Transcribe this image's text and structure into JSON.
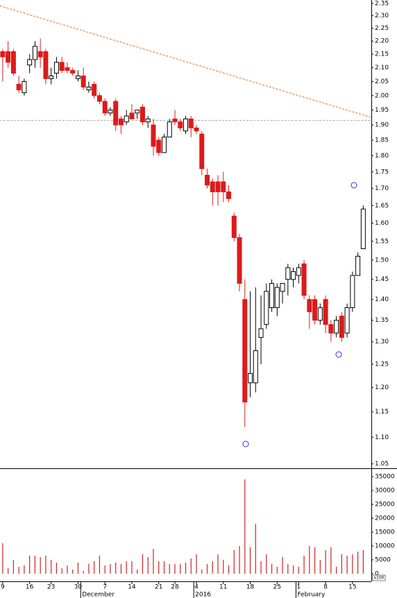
{
  "chart_data": [
    {
      "type": "candlestick",
      "x": [
        0,
        1,
        2,
        3,
        4,
        5,
        6,
        7,
        8,
        9,
        10,
        11,
        12,
        13,
        14,
        15,
        16,
        17,
        18,
        19,
        20,
        21,
        22,
        23,
        24,
        25,
        26,
        27,
        28,
        29,
        30,
        31,
        32,
        33,
        34,
        35,
        36,
        37,
        38,
        39,
        40,
        41,
        42,
        43,
        44,
        45,
        46,
        47,
        48,
        49,
        50,
        51,
        52,
        53,
        54,
        55,
        56,
        57,
        58,
        59,
        60,
        61,
        62,
        63,
        64,
        65,
        66,
        67
      ],
      "open": [
        2.16,
        2.16,
        2.16,
        2.04,
        2.01,
        2.11,
        2.13,
        2.16,
        2.16,
        2.06,
        2.08,
        2.12,
        2.1,
        2.09,
        2.06,
        2.07,
        2.02,
        2.04,
        2.0,
        1.98,
        1.94,
        1.98,
        1.92,
        1.91,
        1.94,
        1.94,
        1.96,
        1.91,
        1.9,
        1.85,
        1.81,
        1.86,
        1.92,
        1.91,
        1.88,
        1.92,
        1.89,
        1.87,
        1.74,
        1.72,
        1.72,
        1.72,
        1.69,
        1.62,
        1.56,
        1.4,
        1.21,
        1.21,
        1.31,
        1.34,
        1.38,
        1.38,
        1.42,
        1.45,
        1.45,
        1.46,
        1.49,
        1.4,
        1.4,
        1.35,
        1.4,
        1.34,
        1.32,
        1.36,
        1.32,
        1.38,
        1.46,
        1.53
      ],
      "high": [
        2.17,
        2.2,
        2.17,
        2.07,
        2.06,
        2.15,
        2.2,
        2.21,
        2.17,
        2.1,
        2.14,
        2.14,
        2.12,
        2.1,
        2.09,
        2.1,
        2.05,
        2.05,
        2.01,
        1.99,
        1.96,
        1.99,
        1.93,
        1.95,
        1.97,
        1.95,
        1.97,
        1.93,
        1.92,
        1.86,
        1.87,
        1.92,
        1.95,
        1.92,
        1.93,
        1.93,
        1.9,
        1.88,
        1.76,
        1.73,
        1.74,
        1.75,
        1.71,
        1.63,
        1.57,
        1.45,
        1.42,
        1.43,
        1.41,
        1.44,
        1.45,
        1.44,
        1.44,
        1.49,
        1.48,
        1.49,
        1.5,
        1.41,
        1.41,
        1.39,
        1.41,
        1.35,
        1.36,
        1.37,
        1.39,
        1.47,
        1.52,
        1.65
      ],
      "low": [
        2.05,
        2.1,
        2.07,
        2.01,
        2.0,
        2.08,
        2.1,
        2.1,
        2.04,
        2.04,
        2.06,
        2.08,
        2.08,
        2.07,
        2.05,
        2.02,
        2.01,
        1.99,
        1.97,
        1.93,
        1.93,
        1.88,
        1.87,
        1.9,
        1.92,
        1.92,
        1.9,
        1.89,
        1.8,
        1.8,
        1.81,
        1.86,
        1.9,
        1.88,
        1.87,
        1.86,
        1.87,
        1.74,
        1.7,
        1.65,
        1.65,
        1.66,
        1.66,
        1.55,
        1.42,
        1.12,
        1.18,
        1.19,
        1.25,
        1.33,
        1.37,
        1.36,
        1.39,
        1.41,
        1.43,
        1.44,
        1.4,
        1.33,
        1.34,
        1.34,
        1.32,
        1.3,
        1.31,
        1.3,
        1.31,
        1.37,
        1.46,
        1.53
      ],
      "close": [
        2.14,
        2.12,
        2.08,
        2.02,
        2.05,
        2.13,
        2.18,
        2.14,
        2.06,
        2.07,
        2.12,
        2.09,
        2.09,
        2.08,
        2.07,
        2.03,
        2.03,
        2.0,
        1.98,
        1.94,
        1.95,
        1.9,
        1.9,
        1.93,
        1.92,
        1.95,
        1.91,
        1.92,
        1.83,
        1.81,
        1.86,
        1.91,
        1.91,
        1.89,
        1.92,
        1.89,
        1.88,
        1.76,
        1.71,
        1.69,
        1.69,
        1.69,
        1.67,
        1.56,
        1.44,
        1.17,
        1.23,
        1.28,
        1.33,
        1.42,
        1.44,
        1.43,
        1.44,
        1.48,
        1.47,
        1.48,
        1.41,
        1.37,
        1.35,
        1.38,
        1.34,
        1.32,
        1.35,
        1.31,
        1.38,
        1.46,
        1.51,
        1.64
      ],
      "up_color": "#ffffff",
      "down_color": "#dd1a1a",
      "log_scale": true,
      "xlim": [
        -0.5,
        68.5
      ],
      "ylim": [
        1.042,
        2.364
      ],
      "yticks": [
        2.35,
        {
          "value": 2.3,
          "label": "2.30"
        },
        2.25,
        {
          "value": 2.2,
          "label": "2.20"
        },
        2.15,
        {
          "value": 2.1,
          "label": "2.10"
        },
        2.05,
        {
          "value": 2.0,
          "label": "2.00"
        },
        1.95,
        {
          "value": 1.9,
          "label": "1.90"
        },
        1.85,
        {
          "value": 1.8,
          "label": "1.80"
        },
        1.75,
        {
          "value": 1.7,
          "label": "1.70"
        },
        1.65,
        {
          "value": 1.6,
          "label": "1.60"
        },
        1.55,
        {
          "value": 1.5,
          "label": "1.50"
        },
        1.45,
        {
          "value": 1.4,
          "label": "1.40"
        },
        1.35,
        {
          "value": 1.3,
          "label": "1.30"
        },
        1.25,
        {
          "value": 1.2,
          "label": "1.20"
        },
        1.15,
        {
          "value": 1.1,
          "label": "1.10"
        },
        1.05
      ],
      "hline": 1.915,
      "trendline": {
        "x": [
          -0.5,
          68.5
        ],
        "y": [
          2.34,
          1.925
        ]
      }
    },
    {
      "type": "bar",
      "x": [
        0,
        1,
        2,
        3,
        4,
        5,
        6,
        7,
        8,
        9,
        10,
        11,
        12,
        13,
        14,
        15,
        16,
        17,
        18,
        19,
        20,
        21,
        22,
        23,
        24,
        25,
        26,
        27,
        28,
        29,
        30,
        31,
        32,
        33,
        34,
        35,
        36,
        37,
        38,
        39,
        40,
        41,
        42,
        43,
        44,
        45,
        46,
        47,
        48,
        49,
        50,
        51,
        52,
        53,
        54,
        55,
        56,
        57,
        58,
        59,
        60,
        61,
        62,
        63,
        64,
        65,
        66,
        67
      ],
      "values": [
        11000,
        2000,
        5000,
        2500,
        3000,
        6500,
        6500,
        6000,
        6500,
        5000,
        4000,
        2000,
        3000,
        1500,
        4000,
        1000,
        3500,
        4500,
        6500,
        3000,
        3500,
        4000,
        3500,
        4500,
        4500,
        1500,
        7000,
        6000,
        9000,
        4500,
        4500,
        3500,
        3500,
        3500,
        4000,
        5500,
        7000,
        1500,
        3500,
        4500,
        7000,
        5000,
        3000,
        8500,
        10000,
        34000,
        9500,
        18000,
        4500,
        7000,
        3500,
        2500,
        6000,
        3500,
        3000,
        2500,
        6500,
        10000,
        9500,
        5000,
        8500,
        9500,
        2500,
        7000,
        6500,
        7000,
        8000,
        8500
      ],
      "color": "#cc2222",
      "xlim": [
        -0.5,
        68.5
      ],
      "ylim": [
        0,
        37750
      ],
      "yticks": [
        0,
        5000,
        10000,
        15000,
        20000,
        25000,
        30000,
        35000
      ],
      "volume_unit": "x100",
      "xticks": [
        {
          "value": 0,
          "label": "9"
        },
        {
          "value": 5,
          "label": "16"
        },
        {
          "value": 9,
          "label": "23"
        },
        {
          "value": 14,
          "label": "30"
        },
        {
          "value": 19,
          "label": "7"
        },
        {
          "value": 24,
          "label": "14"
        },
        {
          "value": 29,
          "label": "21"
        },
        {
          "value": 32,
          "label": "28"
        },
        {
          "value": 36,
          "label": "4"
        },
        {
          "value": 41,
          "label": "11"
        },
        {
          "value": 46,
          "label": "18"
        },
        {
          "value": 51,
          "label": "25"
        },
        {
          "value": 55,
          "label": "1"
        },
        {
          "value": 60,
          "label": "8"
        },
        {
          "value": 65,
          "label": "15"
        }
      ],
      "month_ticks": [
        {
          "value": 14.5,
          "label": "December"
        },
        {
          "value": 35.5,
          "label": "2016"
        },
        {
          "value": 54.5,
          "label": "February"
        }
      ]
    }
  ]
}
